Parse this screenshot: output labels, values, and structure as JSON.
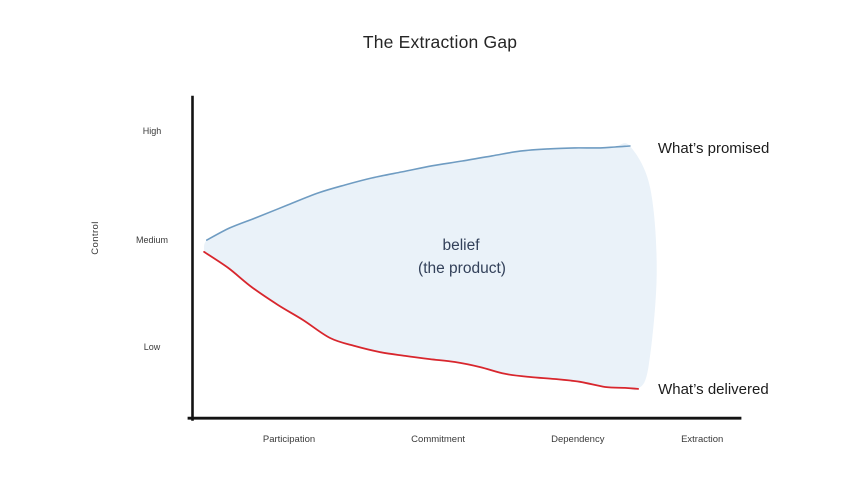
{
  "title": "The Extraction Gap",
  "area_label": {
    "line1": "belief",
    "line2": "(the product)"
  },
  "colors": {
    "promised_line": "#6f9cc2",
    "delivered_line": "#d8262d",
    "belief_fill": "#eaf2f9",
    "axis": "#121212",
    "belief_text": "#33415a"
  },
  "chart_data": {
    "type": "line",
    "title": "The Extraction Gap",
    "xlabel": "",
    "ylabel": "Control",
    "y_ticks": [
      "High",
      "Medium",
      "Low"
    ],
    "y_tick_pos": [
      89.7,
      55.6,
      22.2
    ],
    "x_categories": [
      "Participation",
      "Commitment",
      "Dependency",
      "Extraction"
    ],
    "x_category_pos": [
      17.7,
      44.9,
      70.4,
      93.1
    ],
    "grid": false,
    "legend_position": "right-of-line-ends",
    "coord_space": {
      "x_range": [
        0,
        100
      ],
      "y_range": [
        0,
        100
      ],
      "note": "percent of axis length; y 0 = bottom axis, 100 = top"
    },
    "series": [
      {
        "name": "What’s promised",
        "color": "#6f9cc2",
        "points": [
          [
            2.7,
            55.6
          ],
          [
            6.9,
            59.4
          ],
          [
            12.0,
            62.8
          ],
          [
            17.5,
            66.6
          ],
          [
            23.0,
            70.3
          ],
          [
            27.9,
            72.8
          ],
          [
            32.8,
            75.0
          ],
          [
            38.3,
            76.9
          ],
          [
            43.8,
            78.8
          ],
          [
            49.3,
            80.3
          ],
          [
            54.7,
            81.9
          ],
          [
            59.9,
            83.4
          ],
          [
            65.0,
            84.1
          ],
          [
            69.9,
            84.4
          ],
          [
            74.5,
            84.4
          ],
          [
            77.2,
            84.7
          ],
          [
            79.9,
            85.0
          ]
        ]
      },
      {
        "name": "What’s delivered",
        "color": "#d8262d",
        "points": [
          [
            2.2,
            51.9
          ],
          [
            6.6,
            46.9
          ],
          [
            10.9,
            40.9
          ],
          [
            15.7,
            35.3
          ],
          [
            20.3,
            30.6
          ],
          [
            25.2,
            25.0
          ],
          [
            29.7,
            22.5
          ],
          [
            34.3,
            20.6
          ],
          [
            38.9,
            19.4
          ],
          [
            43.4,
            18.4
          ],
          [
            48.0,
            17.5
          ],
          [
            52.6,
            15.9
          ],
          [
            57.1,
            13.8
          ],
          [
            61.7,
            12.8
          ],
          [
            66.2,
            12.2
          ],
          [
            70.8,
            11.3
          ],
          [
            75.4,
            9.7
          ],
          [
            79.0,
            9.4
          ],
          [
            81.4,
            9.1
          ]
        ]
      }
    ],
    "fill_between": {
      "label": "belief (the product)",
      "color": "#eaf2f9",
      "right_edge": [
        [
          83.6,
          72.0
        ],
        [
          84.8,
          45.0
        ],
        [
          83.3,
          16.0
        ]
      ]
    }
  }
}
